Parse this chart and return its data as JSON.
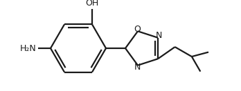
{
  "bg_color": "#ffffff",
  "line_color": "#1a1a1a",
  "bond_lw": 1.6,
  "font_size": 9.0,
  "label_OH": "OH",
  "label_H2N": "H₂N",
  "label_O": "O",
  "label_N1": "N",
  "label_N2": "N",
  "figsize": [
    3.48,
    1.32
  ],
  "dpi": 100
}
